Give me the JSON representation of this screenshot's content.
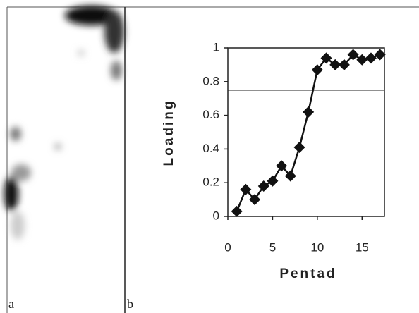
{
  "panel_labels": [
    "a",
    "b"
  ],
  "chart_data": {
    "type": "line",
    "x_label": "Pentad",
    "y_label": "Loading",
    "x": [
      1,
      2,
      3,
      4,
      5,
      6,
      7,
      8,
      9,
      10,
      11,
      12,
      13,
      14,
      15,
      16,
      17
    ],
    "series": [
      {
        "name": "Loading",
        "color": "#111111",
        "values": [
          0.03,
          0.16,
          0.1,
          0.18,
          0.21,
          0.3,
          0.24,
          0.41,
          0.62,
          0.87,
          0.94,
          0.9,
          0.9,
          0.96,
          0.93,
          0.94,
          0.96
        ]
      }
    ],
    "hline": 0.75,
    "xlim": [
      0,
      17.5
    ],
    "xticks": [
      0,
      5,
      10,
      15
    ],
    "ylim": [
      0,
      1
    ],
    "yticks": [
      0,
      0.2,
      0.4,
      0.6,
      0.8,
      1
    ]
  }
}
